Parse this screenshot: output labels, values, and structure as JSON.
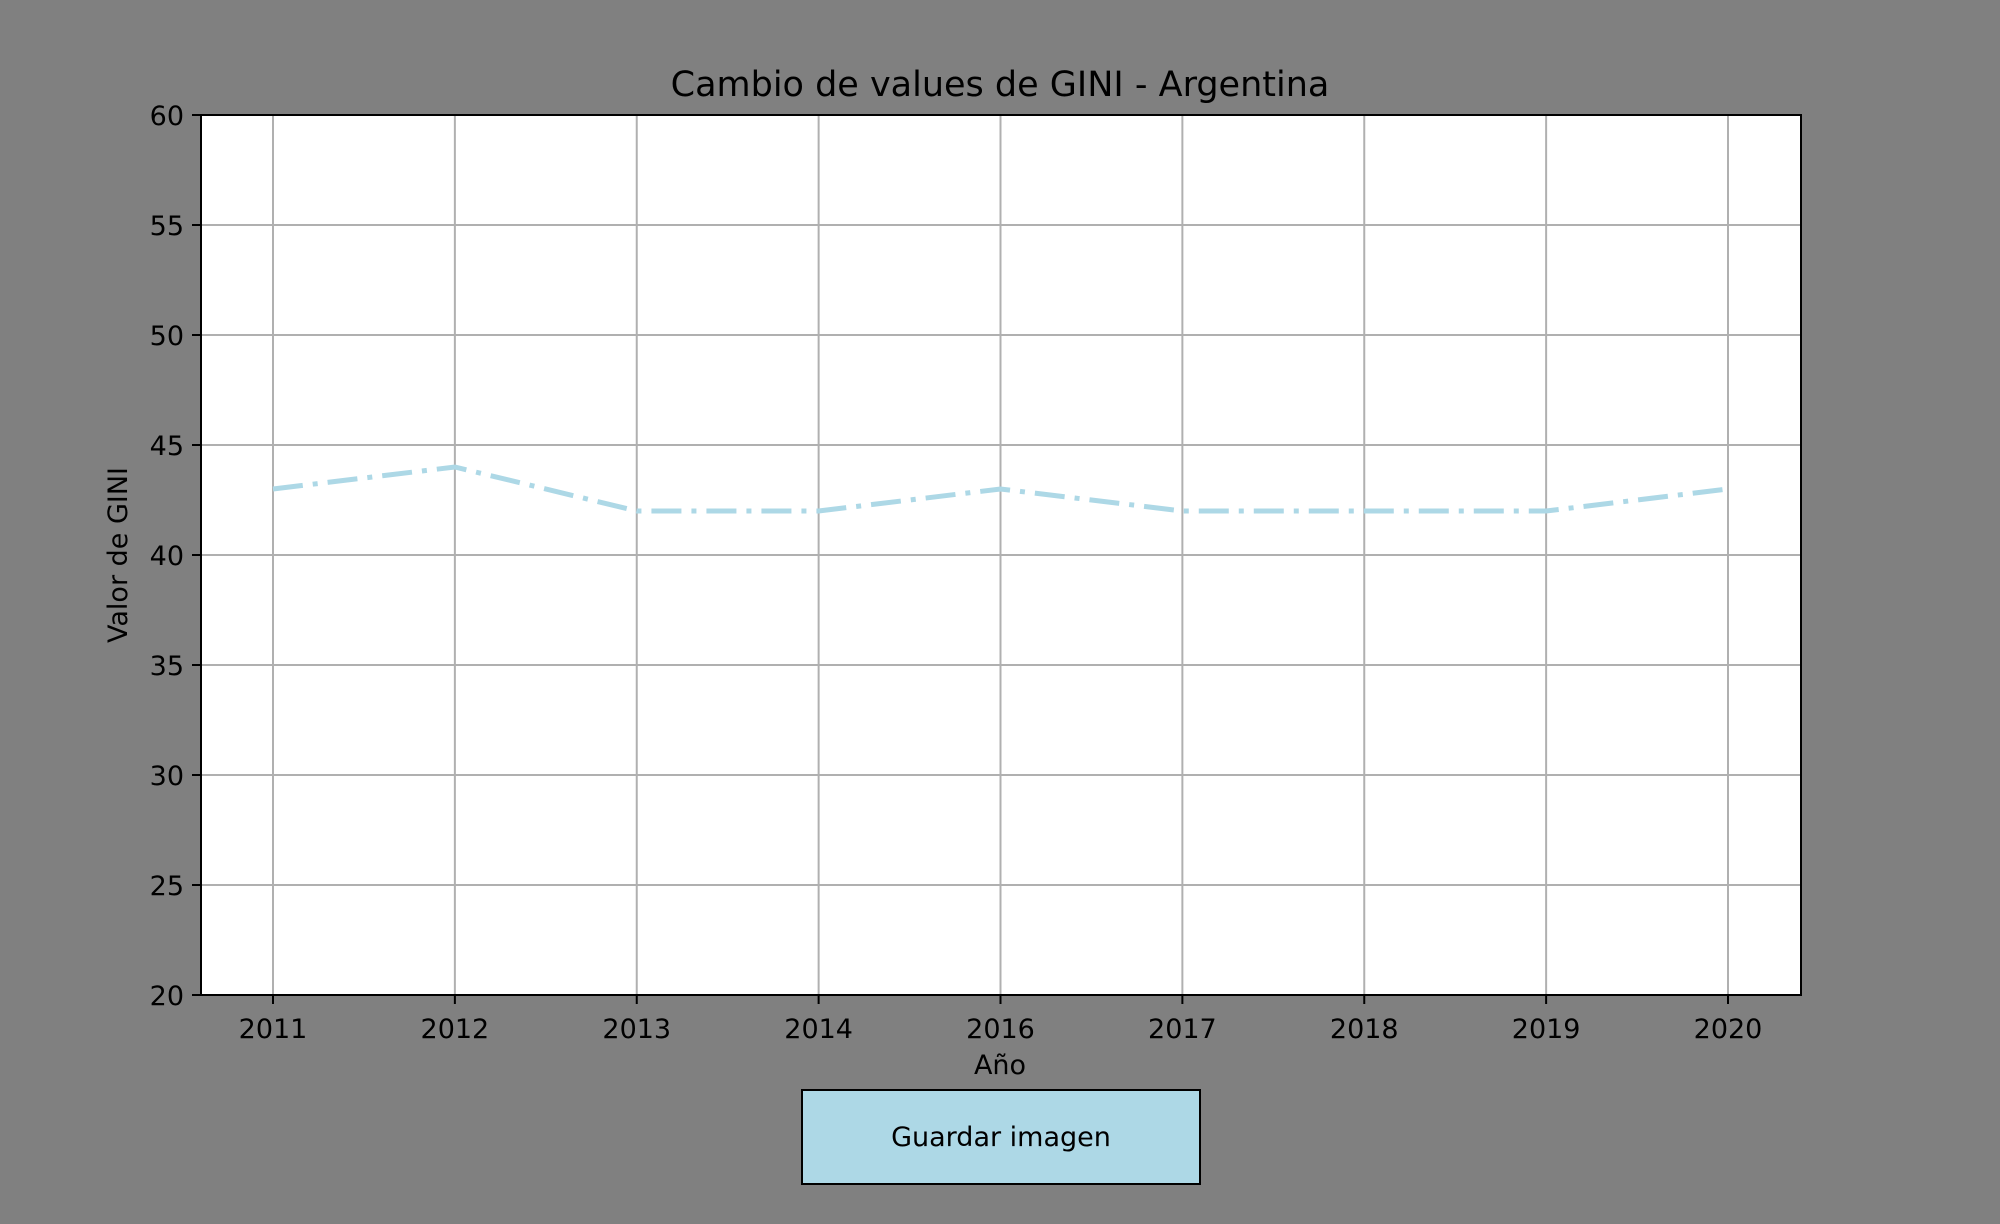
{
  "chart_data": {
    "type": "line",
    "title": "Cambio de values de GINI - Argentina",
    "xlabel": "Año",
    "ylabel": "Valor de GINI",
    "categories": [
      "2011",
      "2012",
      "2013",
      "2014",
      "2016",
      "2017",
      "2018",
      "2019",
      "2020"
    ],
    "series": [
      {
        "values": [
          43,
          44,
          42,
          42,
          43,
          42,
          42,
          42,
          43
        ],
        "color": "#add8e6",
        "line_style": "dash-dot"
      }
    ],
    "ylim": [
      20,
      60
    ],
    "yticks": [
      20,
      25,
      30,
      35,
      40,
      45,
      50,
      55,
      60
    ],
    "grid": true
  },
  "colors": {
    "figure_background": "#808080",
    "plot_background": "#ffffff",
    "grid": "#b0b0b0",
    "line": "#add8e6",
    "button_background": "#add8e6"
  },
  "controls": {
    "save_button_label": "Guardar imagen"
  }
}
